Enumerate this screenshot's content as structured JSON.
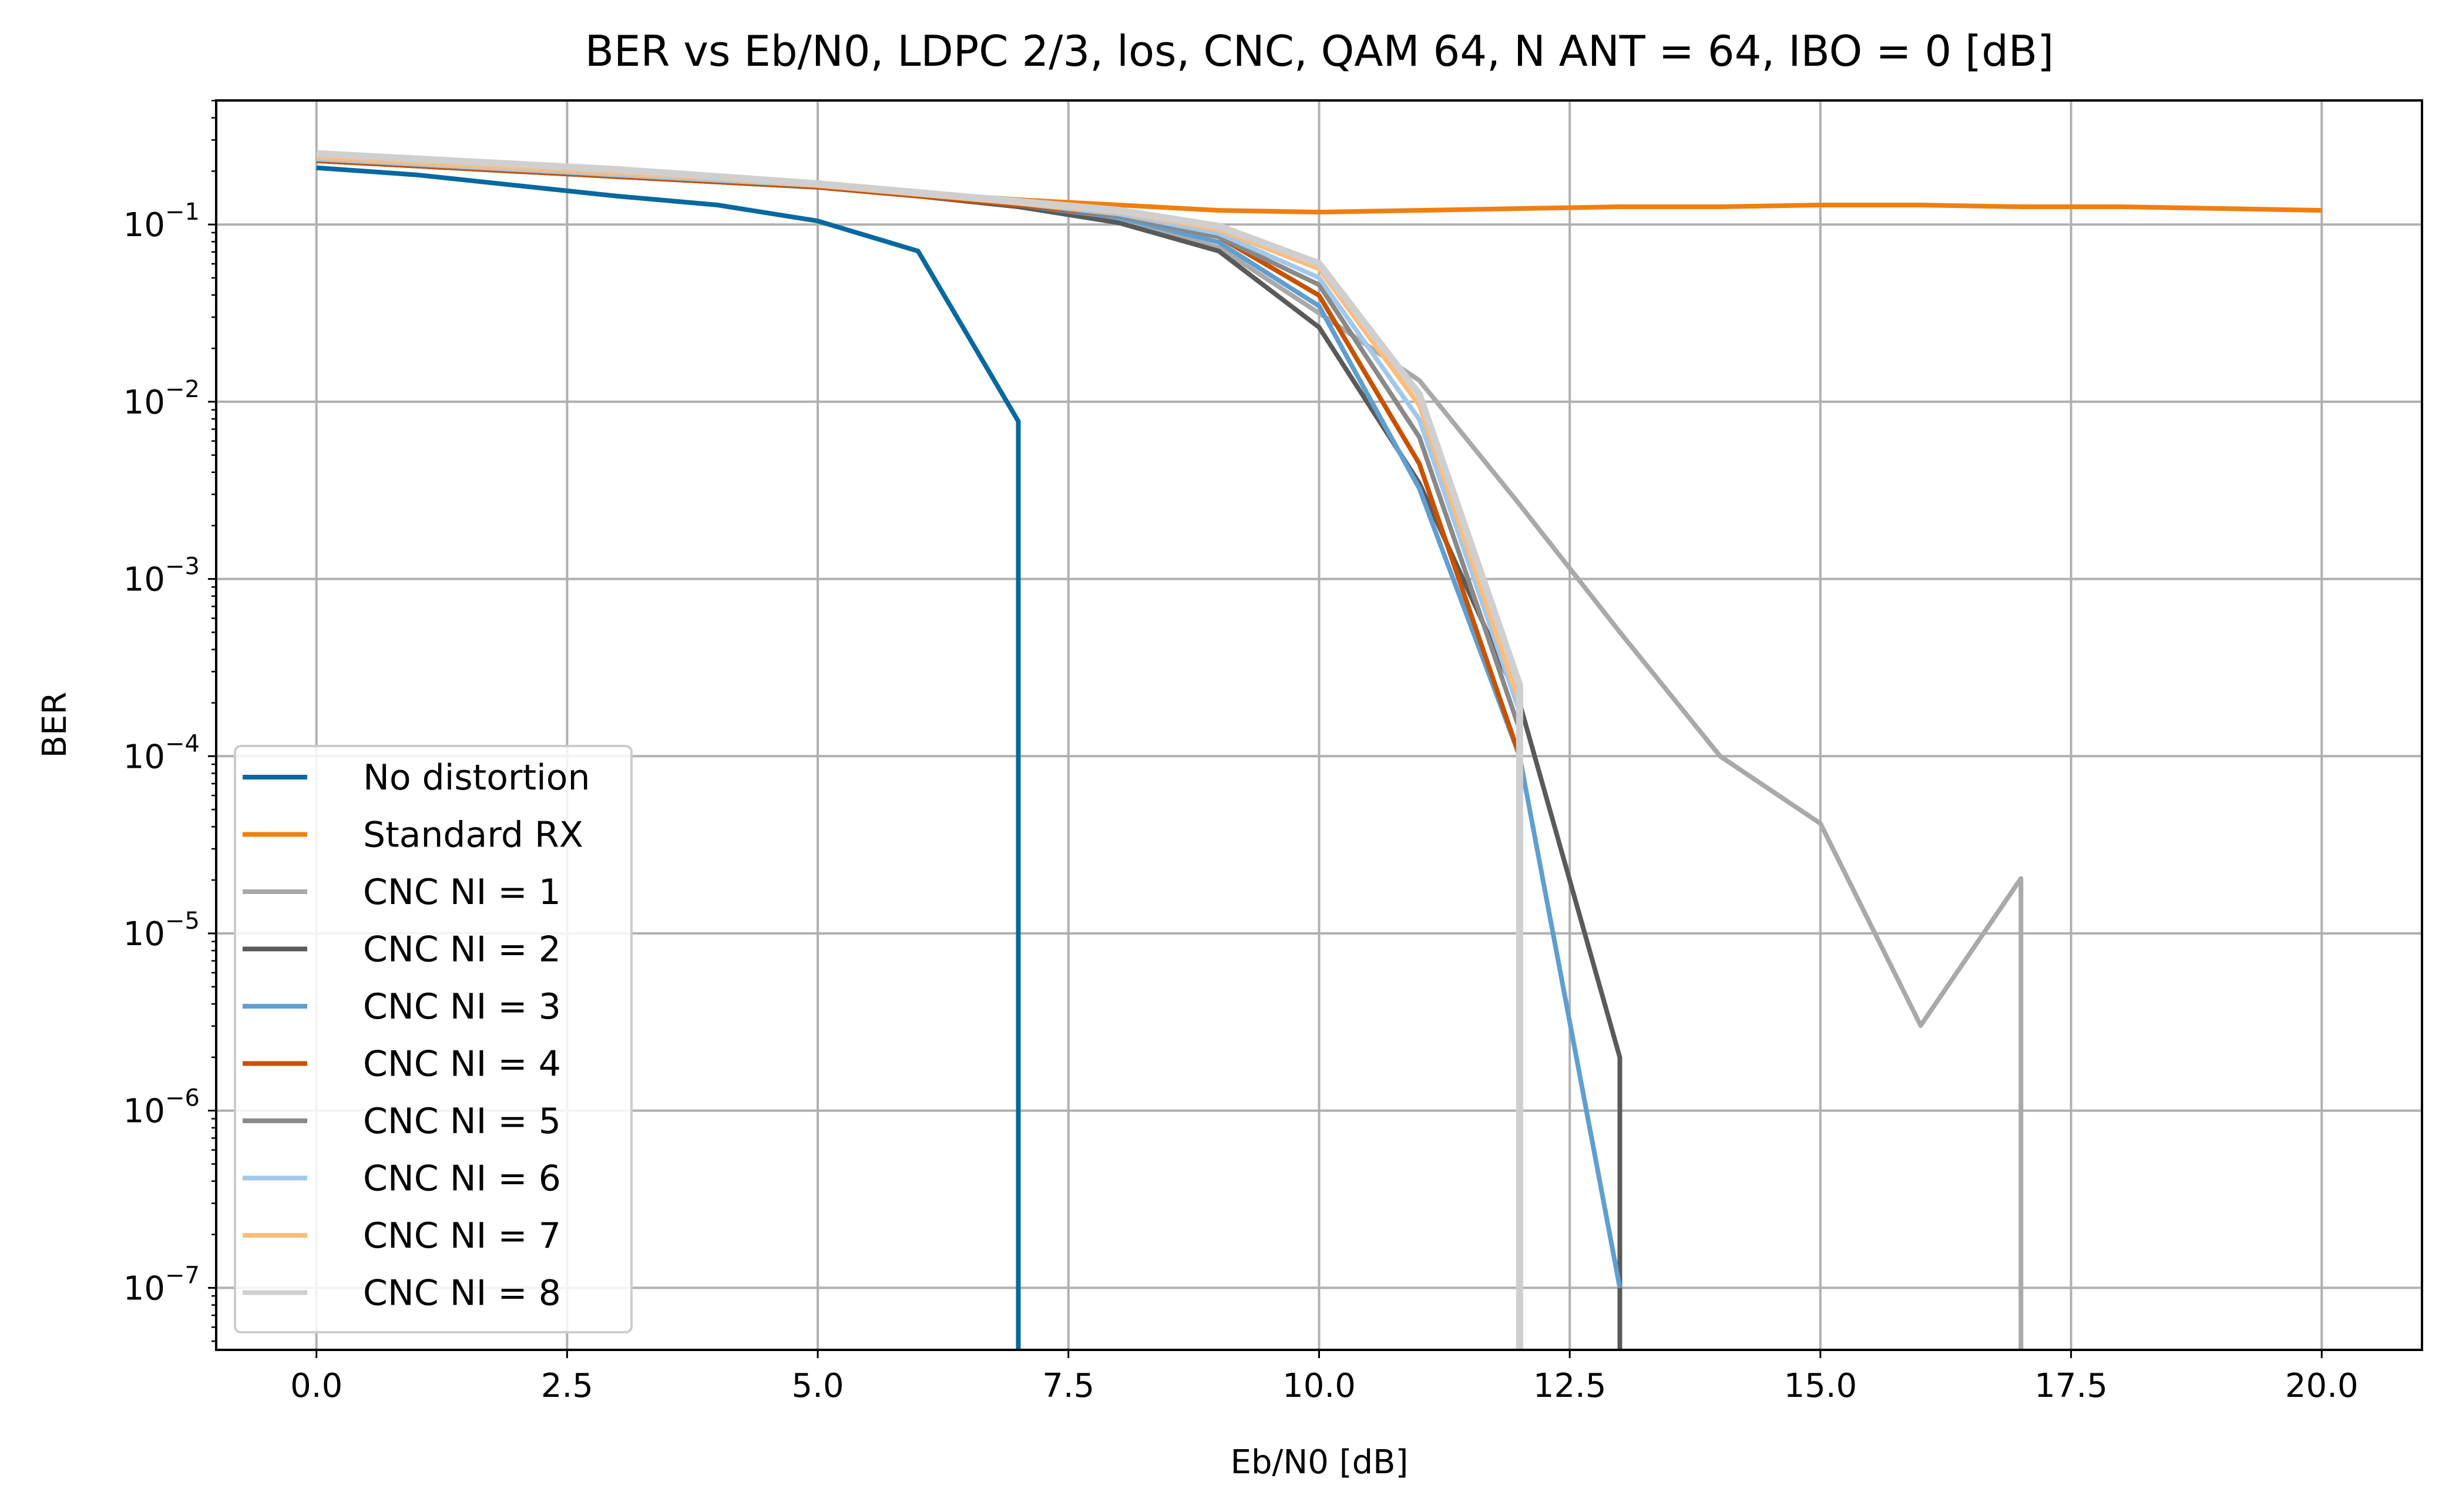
{
  "chart_data": {
    "type": "line",
    "title": "BER vs Eb/N0, LDPC 2/3, los, CNC, QAM 64, N ANT = 64, IBO = 0 [dB]",
    "xlabel": "Eb/N0 [dB]",
    "ylabel": "BER",
    "xlim": [
      -1.0,
      21.0
    ],
    "ylim_log10": [
      -7.35,
      -0.3
    ],
    "y_scale": "log",
    "grid": true,
    "legend_position": "lower left",
    "x_ticks": [
      {
        "value": 0.0,
        "label": "0.0"
      },
      {
        "value": 2.5,
        "label": "2.5"
      },
      {
        "value": 5.0,
        "label": "5.0"
      },
      {
        "value": 7.5,
        "label": "7.5"
      },
      {
        "value": 10.0,
        "label": "10.0"
      },
      {
        "value": 12.5,
        "label": "12.5"
      },
      {
        "value": 15.0,
        "label": "15.0"
      },
      {
        "value": 17.5,
        "label": "17.5"
      },
      {
        "value": 20.0,
        "label": "20.0"
      }
    ],
    "y_ticks": [
      {
        "exp": -1,
        "base": "10",
        "sup": "−1"
      },
      {
        "exp": -2,
        "base": "10",
        "sup": "−2"
      },
      {
        "exp": -3,
        "base": "10",
        "sup": "−3"
      },
      {
        "exp": -4,
        "base": "10",
        "sup": "−4"
      },
      {
        "exp": -5,
        "base": "10",
        "sup": "−5"
      },
      {
        "exp": -6,
        "base": "10",
        "sup": "−6"
      },
      {
        "exp": -7,
        "base": "10",
        "sup": "−7"
      }
    ],
    "series": [
      {
        "name": "No distortion",
        "color": "#0868a0",
        "x": [
          0,
          1,
          2,
          3,
          4,
          5,
          6,
          7,
          7
        ],
        "log10_y": [
          -0.68,
          -0.72,
          -0.78,
          -0.84,
          -0.89,
          -0.98,
          -1.15,
          -2.11,
          -7.35
        ]
      },
      {
        "name": "Standard RX",
        "color": "#f07f10",
        "x": [
          0,
          1,
          2,
          3,
          4,
          5,
          6,
          7,
          8,
          9,
          10,
          11,
          12,
          13,
          14,
          15,
          16,
          17,
          18,
          19,
          20
        ],
        "log10_y": [
          -0.63,
          -0.66,
          -0.69,
          -0.72,
          -0.75,
          -0.78,
          -0.82,
          -0.86,
          -0.89,
          -0.92,
          -0.93,
          -0.92,
          -0.91,
          -0.9,
          -0.9,
          -0.89,
          -0.89,
          -0.9,
          -0.9,
          -0.91,
          -0.92
        ]
      },
      {
        "name": "CNC NI = 1",
        "color": "#a9a9a9",
        "x": [
          0,
          1,
          2,
          3,
          4,
          5,
          6,
          7,
          8,
          9,
          10,
          11,
          12,
          13,
          14,
          15,
          16,
          17,
          17
        ],
        "log10_y": [
          -0.64,
          -0.67,
          -0.7,
          -0.73,
          -0.76,
          -0.79,
          -0.83,
          -0.89,
          -0.98,
          -1.13,
          -1.5,
          -1.88,
          -2.58,
          -3.3,
          -4.0,
          -4.38,
          -5.52,
          -4.69,
          -7.35
        ]
      },
      {
        "name": "CNC NI = 2",
        "color": "#5a5a5a",
        "x": [
          0,
          1,
          2,
          3,
          4,
          5,
          6,
          7,
          8,
          9,
          10,
          11,
          12,
          13,
          13
        ],
        "log10_y": [
          -0.64,
          -0.67,
          -0.7,
          -0.73,
          -0.76,
          -0.79,
          -0.84,
          -0.9,
          -0.99,
          -1.15,
          -1.58,
          -2.46,
          -3.7,
          -5.7,
          -7.35
        ]
      },
      {
        "name": "CNC NI = 3",
        "color": "#5f9ed1",
        "x": [
          0,
          1,
          2,
          3,
          4,
          5,
          6,
          7,
          8,
          9,
          10,
          11,
          12,
          13
        ],
        "log10_y": [
          -0.64,
          -0.67,
          -0.7,
          -0.73,
          -0.76,
          -0.79,
          -0.84,
          -0.89,
          -0.96,
          -1.1,
          -1.46,
          -2.49,
          -4.0,
          -7.0
        ]
      },
      {
        "name": "CNC NI = 4",
        "color": "#c85200",
        "x": [
          0,
          1,
          2,
          3,
          4,
          5,
          6,
          7,
          8,
          9,
          10,
          11,
          12
        ],
        "log10_y": [
          -0.64,
          -0.67,
          -0.7,
          -0.73,
          -0.76,
          -0.79,
          -0.84,
          -0.89,
          -0.95,
          -1.07,
          -1.4,
          -2.35,
          -4.0
        ]
      },
      {
        "name": "CNC NI = 5",
        "color": "#898989",
        "x": [
          0,
          1,
          2,
          3,
          4,
          5,
          6,
          7,
          8,
          9,
          10,
          11,
          12
        ],
        "log10_y": [
          -0.63,
          -0.66,
          -0.69,
          -0.72,
          -0.75,
          -0.78,
          -0.83,
          -0.88,
          -0.95,
          -1.07,
          -1.34,
          -2.2,
          -3.85
        ]
      },
      {
        "name": "CNC NI = 6",
        "color": "#a2c8ec",
        "x": [
          0,
          1,
          2,
          3,
          4,
          5,
          6,
          7,
          8,
          9,
          10,
          11,
          12
        ],
        "log10_y": [
          -0.63,
          -0.66,
          -0.69,
          -0.72,
          -0.75,
          -0.78,
          -0.83,
          -0.88,
          -0.94,
          -1.05,
          -1.3,
          -2.1,
          -3.75
        ]
      },
      {
        "name": "CNC NI = 7",
        "color": "#ffbc79",
        "x": [
          0,
          1,
          2,
          3,
          4,
          5,
          6,
          7,
          8,
          9,
          10,
          11,
          12
        ],
        "log10_y": [
          -0.62,
          -0.65,
          -0.68,
          -0.71,
          -0.74,
          -0.78,
          -0.83,
          -0.88,
          -0.93,
          -1.03,
          -1.25,
          -2.02,
          -3.7
        ]
      },
      {
        "name": "CNC NI = 8",
        "color": "#cfcfcf",
        "x": [
          0,
          1,
          2,
          3,
          4,
          5,
          6,
          7,
          8,
          9,
          10,
          11,
          12,
          12
        ],
        "log10_y": [
          -0.6,
          -0.63,
          -0.66,
          -0.69,
          -0.73,
          -0.77,
          -0.82,
          -0.87,
          -0.92,
          -1.01,
          -1.22,
          -1.96,
          -3.6,
          -7.35
        ]
      }
    ]
  }
}
